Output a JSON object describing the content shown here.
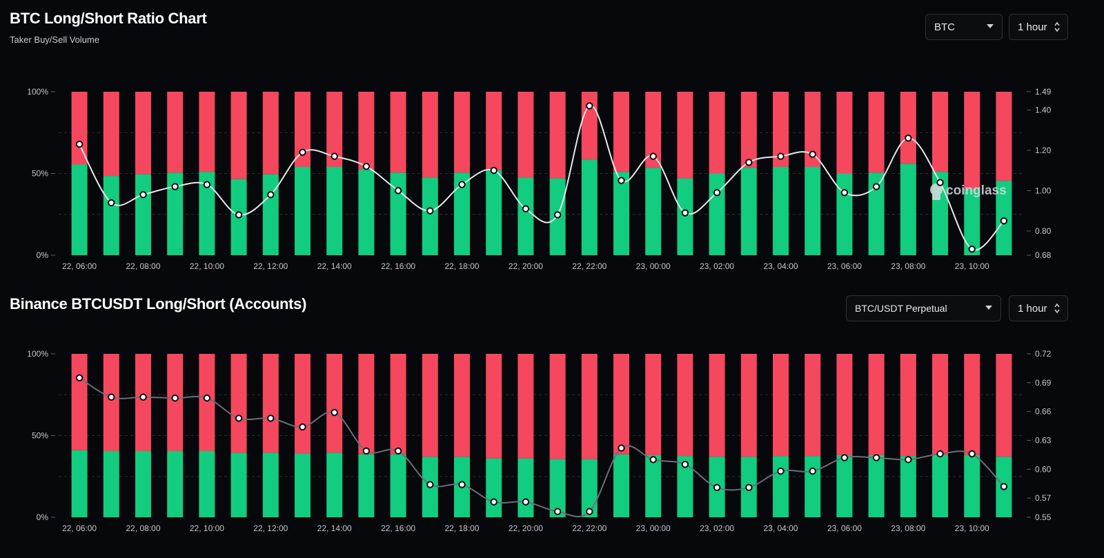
{
  "panel1": {
    "title": "BTC Long/Short Ratio Chart",
    "subtitle": "Taker Buy/Sell Volume",
    "coin_select": {
      "value": "BTC"
    },
    "interval_select": {
      "value": "1 hour"
    }
  },
  "panel2": {
    "title": "Binance BTCUSDT Long/Short (Accounts)",
    "pair_select": {
      "value": "BTC/USDT Perpetual"
    },
    "interval_select": {
      "value": "1 hour"
    }
  },
  "watermark": {
    "text": "coinglass"
  },
  "colors": {
    "long": "#12cc7f",
    "short": "#f5475d",
    "background": "#07080c"
  },
  "chart_data": [
    {
      "type": "bar",
      "stacked": true,
      "title": "BTC Long/Short Ratio Chart",
      "subtitle": "Taker Buy/Sell Volume",
      "x_tick_labels": [
        "22, 06:00",
        "22, 08:00",
        "22, 10:00",
        "22, 12:00",
        "22, 14:00",
        "22, 16:00",
        "22, 18:00",
        "22, 20:00",
        "22, 22:00",
        "23, 00:00",
        "23, 02:00",
        "23, 04:00",
        "23, 06:00",
        "23, 08:00",
        "23, 10:00"
      ],
      "y_left_ticks": [
        "0%",
        "50%",
        "100%"
      ],
      "y_right_ticks": [
        0.68,
        0.8,
        1.0,
        1.2,
        1.4,
        1.49
      ],
      "ylim_left": [
        0,
        100
      ],
      "ylim_right": [
        0.68,
        1.49
      ],
      "long_pct": [
        55.5,
        48.5,
        49.5,
        50.5,
        51,
        46.5,
        49.5,
        54,
        54,
        52.5,
        50.5,
        47.5,
        50.5,
        52,
        47.5,
        47,
        58.5,
        51,
        53.5,
        47,
        50,
        53.5,
        54,
        54,
        50,
        50.5,
        56,
        51,
        40.5,
        45.5
      ],
      "ratio": [
        1.23,
        0.94,
        0.98,
        1.02,
        1.03,
        0.88,
        0.98,
        1.19,
        1.17,
        1.12,
        1.0,
        0.9,
        1.03,
        1.1,
        0.91,
        0.88,
        1.42,
        1.05,
        1.17,
        0.89,
        0.99,
        1.14,
        1.17,
        1.18,
        0.99,
        1.02,
        1.26,
        1.04,
        0.71,
        0.85
      ]
    },
    {
      "type": "bar",
      "stacked": true,
      "title": "Binance BTCUSDT Long/Short (Accounts)",
      "x_tick_labels": [
        "22, 06:00",
        "22, 08:00",
        "22, 10:00",
        "22, 12:00",
        "22, 14:00",
        "22, 16:00",
        "22, 18:00",
        "22, 20:00",
        "22, 22:00",
        "23, 00:00",
        "23, 02:00",
        "23, 04:00",
        "23, 06:00",
        "23, 08:00",
        "23, 10:00"
      ],
      "y_left_ticks": [
        "0%",
        "50%",
        "100%"
      ],
      "y_right_ticks": [
        0.55,
        0.57,
        0.6,
        0.63,
        0.66,
        0.69,
        0.72
      ],
      "ylim_left": [
        0,
        100
      ],
      "ylim_right": [
        0.55,
        0.72
      ],
      "long_pct": [
        41,
        40.5,
        40.5,
        40.5,
        40.5,
        39.5,
        39.5,
        39,
        39.5,
        38.5,
        38.5,
        37,
        37,
        36,
        36,
        35.5,
        35.5,
        38.5,
        38,
        37.5,
        37,
        37,
        37.5,
        37.5,
        38,
        38,
        37.5,
        38,
        38,
        37
      ],
      "ratio": [
        0.695,
        0.675,
        0.675,
        0.674,
        0.674,
        0.653,
        0.653,
        0.644,
        0.659,
        0.619,
        0.619,
        0.584,
        0.584,
        0.566,
        0.566,
        0.556,
        0.556,
        0.622,
        0.61,
        0.605,
        0.581,
        0.581,
        0.598,
        0.598,
        0.612,
        0.612,
        0.61,
        0.616,
        0.616,
        0.582
      ]
    }
  ]
}
